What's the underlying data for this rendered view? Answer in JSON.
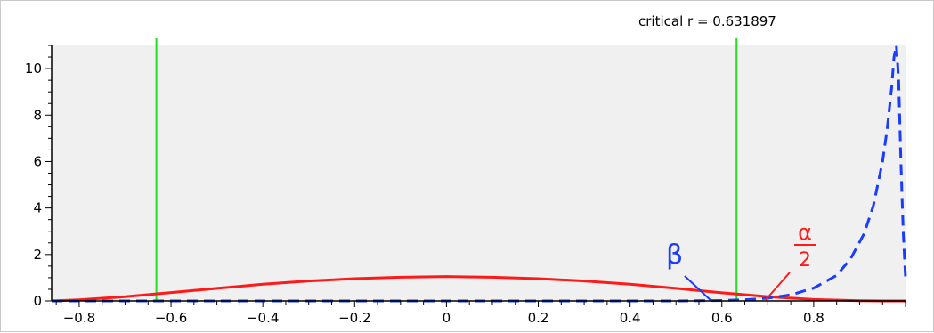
{
  "chart_data": {
    "type": "line",
    "title": "",
    "xlabel": "",
    "ylabel": "",
    "xlim": [
      -0.86,
      1.0
    ],
    "ylim": [
      0,
      11
    ],
    "grid": false,
    "x_ticks": [
      -0.8,
      -0.6,
      -0.4,
      -0.2,
      0,
      0.2,
      0.4,
      0.6,
      0.8
    ],
    "x_tick_labels": [
      "−0.8",
      "−0.6",
      "−0.4",
      "−0.2",
      "0",
      "0.2",
      "0.4",
      "0.6",
      "0.8"
    ],
    "y_ticks": [
      0,
      2,
      4,
      6,
      8,
      10
    ],
    "y_tick_labels": [
      "0",
      "2",
      "4",
      "6",
      "8",
      "10"
    ],
    "critical_label": "critical r = 0.631897",
    "critical_r": 0.631897,
    "vertical_lines": [
      {
        "x": -0.631897,
        "color": "#22dd22"
      },
      {
        "x": 0.631897,
        "color": "#22dd22"
      }
    ],
    "series": [
      {
        "style": "solid",
        "color": "#ff1a1a",
        "x": [
          -0.86,
          -0.8,
          -0.7,
          -0.6,
          -0.5,
          -0.4,
          -0.3,
          -0.2,
          -0.1,
          0.0,
          0.1,
          0.2,
          0.3,
          0.4,
          0.5,
          0.6,
          0.7,
          0.8,
          0.9,
          0.95,
          1.0
        ],
        "y": [
          0.0,
          0.05,
          0.18,
          0.36,
          0.54,
          0.72,
          0.86,
          0.96,
          1.02,
          1.05,
          1.02,
          0.96,
          0.86,
          0.72,
          0.54,
          0.35,
          0.18,
          0.06,
          0.01,
          0.0,
          0.0
        ]
      },
      {
        "style": "dashed",
        "color": "#1a3cff",
        "x": [
          -0.86,
          0.5,
          0.6,
          0.65,
          0.7,
          0.75,
          0.8,
          0.85,
          0.88,
          0.91,
          0.93,
          0.95,
          0.96,
          0.97,
          0.975,
          0.98,
          0.985,
          0.99,
          0.995,
          1.0
        ],
        "y": [
          0.0,
          0.0,
          0.02,
          0.05,
          0.12,
          0.26,
          0.55,
          1.1,
          1.8,
          2.9,
          4.1,
          6.0,
          7.4,
          9.2,
          10.5,
          11.0,
          9.5,
          6.0,
          3.0,
          1.0
        ]
      }
    ],
    "annotations": [
      {
        "text": "β",
        "color": "#1a3cff",
        "arrow_to": [
          0.575,
          0.0
        ]
      },
      {
        "numerator": "α",
        "denominator": "2",
        "color": "#ff1a1a",
        "arrow_to": [
          0.695,
          0.0
        ]
      }
    ]
  }
}
